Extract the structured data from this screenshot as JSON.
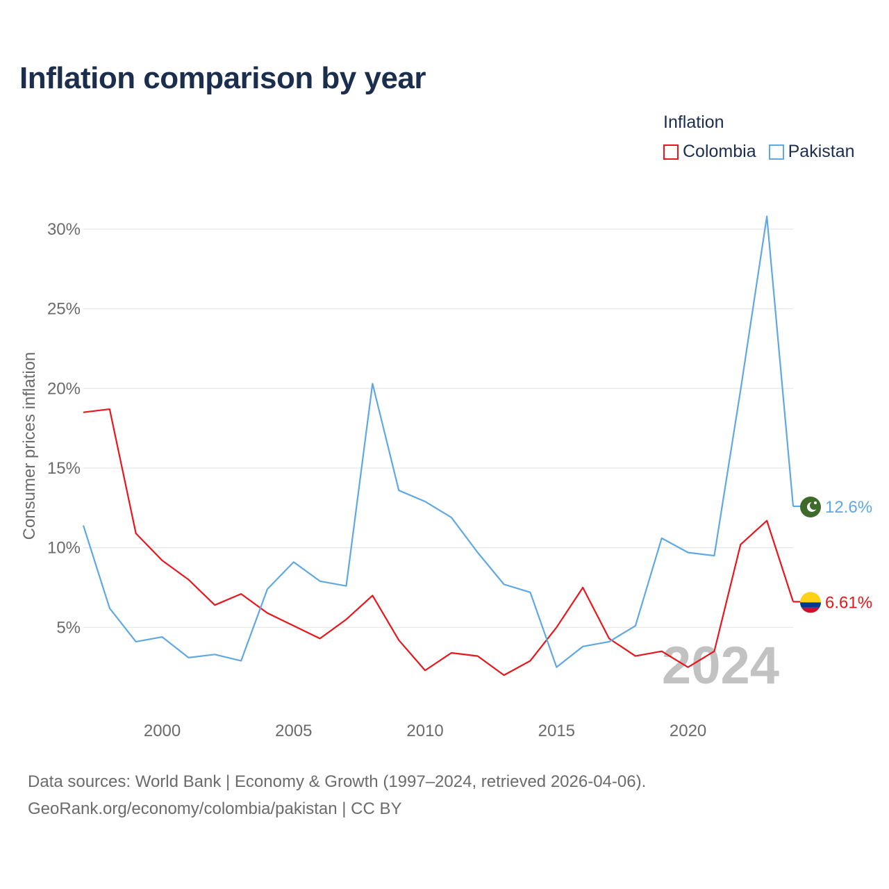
{
  "title": "Inflation comparison by year",
  "legend": {
    "title": "Inflation",
    "items": [
      {
        "label": "Colombia",
        "color": "#e8151b"
      },
      {
        "label": "Pakistan",
        "color": "#5fa8e3"
      }
    ]
  },
  "footer": {
    "line1": "Data sources: World Bank | Economy & Growth (1997–2024, retrieved 2026-04-06).",
    "line2": "GeoRank.org/economy/colombia/pakistan | CC BY"
  },
  "chart_data": {
    "type": "line",
    "title": "Inflation comparison by year",
    "xlabel": "",
    "ylabel": "Consumer prices inflation",
    "x": [
      1997,
      1998,
      1999,
      2000,
      2001,
      2002,
      2003,
      2004,
      2005,
      2006,
      2007,
      2008,
      2009,
      2010,
      2011,
      2012,
      2013,
      2014,
      2015,
      2016,
      2017,
      2018,
      2019,
      2020,
      2021,
      2022,
      2023,
      2024
    ],
    "xlim": [
      1997,
      2024
    ],
    "ylim": [
      0,
      32
    ],
    "xticks": [
      2000,
      2005,
      2010,
      2015,
      2020
    ],
    "xtick_labels": [
      "2000",
      "2005",
      "2010",
      "2015",
      "2020"
    ],
    "yticks": [
      5,
      10,
      15,
      20,
      25,
      30
    ],
    "ytick_labels": [
      "5%",
      "10%",
      "15%",
      "20%",
      "25%",
      "30%"
    ],
    "year_watermark": "2024",
    "series": [
      {
        "name": "Colombia",
        "color": "#e8151b",
        "end_label": "6.61%",
        "values": [
          18.5,
          18.7,
          10.9,
          9.2,
          8.0,
          6.4,
          7.1,
          5.9,
          5.1,
          4.3,
          5.5,
          7.0,
          4.2,
          2.3,
          3.4,
          3.2,
          2.0,
          2.9,
          5.0,
          7.5,
          4.3,
          3.2,
          3.5,
          2.5,
          3.5,
          10.2,
          11.7,
          6.61
        ]
      },
      {
        "name": "Pakistan",
        "color": "#5fa8e3",
        "end_label": "12.6%",
        "values": [
          11.4,
          6.2,
          4.1,
          4.4,
          3.1,
          3.3,
          2.9,
          7.4,
          9.1,
          7.9,
          7.6,
          20.3,
          13.6,
          12.9,
          11.9,
          9.7,
          7.7,
          7.2,
          2.5,
          3.8,
          4.1,
          5.1,
          10.6,
          9.7,
          9.5,
          19.9,
          30.8,
          12.6
        ]
      }
    ]
  }
}
